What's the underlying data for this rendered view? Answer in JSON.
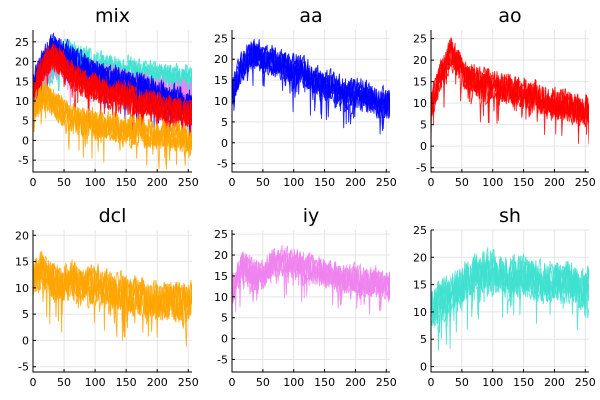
{
  "chart_data": [
    {
      "type": "line",
      "title": "mix",
      "xlim": [
        0,
        256
      ],
      "ylim": [
        -8,
        28
      ],
      "xticks": [
        0,
        50,
        100,
        150,
        200,
        250
      ],
      "yticks": [
        -5,
        0,
        5,
        10,
        15,
        20,
        25
      ],
      "grid": true,
      "legend": "none",
      "series": [
        {
          "color": "#40e0d0",
          "values": [
            11,
            15,
            19,
            22,
            22,
            21,
            20,
            19,
            19,
            18,
            18,
            17,
            17,
            17,
            16,
            16,
            16
          ]
        },
        {
          "color": "#ee82ee",
          "values": [
            12,
            17,
            22,
            21,
            18,
            17,
            17,
            16,
            16,
            15,
            14,
            14,
            13,
            13,
            12,
            12,
            12
          ]
        },
        {
          "color": "#0000ff",
          "values": [
            14,
            20,
            24,
            23,
            21,
            19,
            18,
            17,
            16,
            15,
            14,
            14,
            13,
            12,
            11,
            10,
            10
          ]
        },
        {
          "color": "#ff0000",
          "values": [
            13,
            19,
            22,
            20,
            17,
            15,
            14,
            13,
            12,
            12,
            11,
            10,
            10,
            9,
            8,
            8,
            8
          ]
        },
        {
          "color": "#ffa500",
          "values": [
            8,
            12,
            10,
            8,
            6,
            5,
            5,
            4,
            4,
            3,
            3,
            3,
            2,
            2,
            2,
            1,
            1
          ]
        }
      ]
    },
    {
      "type": "line",
      "title": "aa",
      "xlim": [
        0,
        256
      ],
      "ylim": [
        -7,
        27
      ],
      "xticks": [
        0,
        50,
        100,
        150,
        200,
        250
      ],
      "yticks": [
        -5,
        0,
        5,
        10,
        15,
        20,
        25
      ],
      "grid": true,
      "legend": "none",
      "series": [
        {
          "color": "#0000ff",
          "values": [
            12,
            19,
            22,
            21,
            20,
            19,
            18,
            18,
            16,
            15,
            14,
            13,
            12,
            12,
            11,
            10,
            10
          ]
        }
      ]
    },
    {
      "type": "line",
      "title": "ao",
      "xlim": [
        0,
        256
      ],
      "ylim": [
        -6,
        27
      ],
      "xticks": [
        0,
        50,
        100,
        150,
        200,
        250
      ],
      "yticks": [
        -5,
        0,
        5,
        10,
        15,
        20,
        25
      ],
      "grid": true,
      "legend": "none",
      "series": [
        {
          "color": "#ff0000",
          "values": [
            10,
            17,
            22,
            19,
            16,
            15,
            15,
            14,
            14,
            13,
            12,
            12,
            11,
            10,
            10,
            9,
            9
          ]
        }
      ]
    },
    {
      "type": "line",
      "title": "dcl",
      "xlim": [
        0,
        256
      ],
      "ylim": [
        -6,
        21
      ],
      "xticks": [
        0,
        50,
        100,
        150,
        200,
        250
      ],
      "yticks": [
        -5,
        0,
        5,
        10,
        15,
        20
      ],
      "grid": true,
      "legend": "none",
      "series": [
        {
          "color": "#ffa500",
          "values": [
            12,
            14,
            12,
            11,
            12,
            11,
            11,
            11,
            10,
            10,
            9,
            9,
            8,
            8,
            8,
            8,
            8
          ]
        }
      ]
    },
    {
      "type": "line",
      "title": "iy",
      "xlim": [
        0,
        256
      ],
      "ylim": [
        -8,
        26
      ],
      "xticks": [
        0,
        50,
        100,
        150,
        200,
        250
      ],
      "yticks": [
        -5,
        0,
        5,
        10,
        15,
        20,
        25
      ],
      "grid": true,
      "legend": "none",
      "series": [
        {
          "color": "#ee82ee",
          "values": [
            12,
            18,
            16,
            15,
            19,
            19,
            18,
            18,
            17,
            16,
            16,
            15,
            15,
            14,
            14,
            14,
            13
          ]
        }
      ]
    },
    {
      "type": "line",
      "title": "sh",
      "xlim": [
        0,
        256
      ],
      "ylim": [
        -1,
        25
      ],
      "xticks": [
        0,
        50,
        100,
        150,
        200,
        250
      ],
      "yticks": [
        0,
        5,
        10,
        15,
        20,
        25
      ],
      "grid": true,
      "legend": "none",
      "series": [
        {
          "color": "#40e0d0",
          "values": [
            10,
            13,
            14,
            15,
            17,
            18,
            18,
            18,
            17,
            17,
            17,
            16,
            16,
            16,
            16,
            15,
            15
          ]
        }
      ]
    }
  ]
}
